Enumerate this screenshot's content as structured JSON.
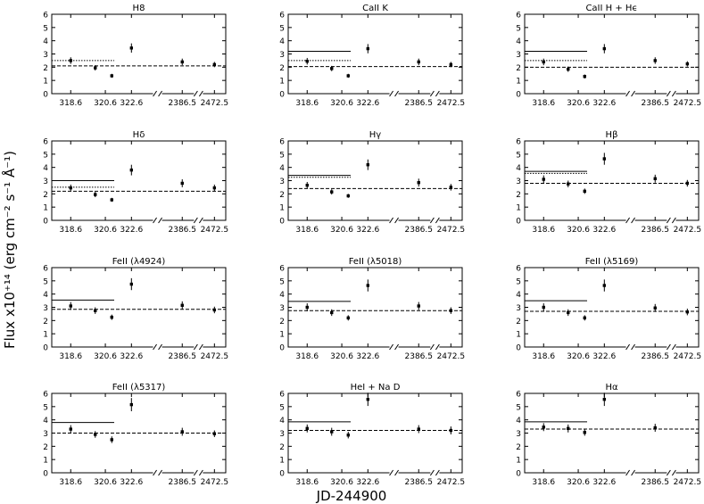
{
  "figure": {
    "xlabel": "JD-244900",
    "ylabel": "Flux x10⁺¹⁴ (erg cm⁻² s⁻¹ Å⁻¹)"
  },
  "chart_data": [
    {
      "type": "scatter",
      "title": "H8",
      "categories": [
        "318.6",
        "320.6",
        "322.6",
        "2386.5",
        "2472.5"
      ],
      "x": [
        318.6,
        319.9,
        320.6,
        322.6,
        2386.5,
        2472.5
      ],
      "y": [
        2.5,
        1.95,
        1.35,
        3.45,
        2.4,
        2.2
      ],
      "err": [
        0.25,
        0.2,
        0.15,
        0.35,
        0.25,
        0.2
      ],
      "mean": 2.1,
      "solid": null,
      "dotted": 2.5,
      "ylim": [
        0,
        6
      ],
      "yticks": [
        0,
        1,
        2,
        3,
        4,
        5,
        6
      ]
    },
    {
      "type": "scatter",
      "title": "CaII K",
      "categories": [
        "318.6",
        "320.6",
        "322.6",
        "2386.5",
        "2472.5"
      ],
      "x": [
        318.6,
        319.9,
        320.6,
        322.6,
        2386.5,
        2472.5
      ],
      "y": [
        2.45,
        1.9,
        1.35,
        3.4,
        2.4,
        2.2
      ],
      "err": [
        0.25,
        0.2,
        0.15,
        0.35,
        0.25,
        0.2
      ],
      "mean": 2.05,
      "solid": 3.2,
      "dotted": 2.5,
      "ylim": [
        0,
        6
      ],
      "yticks": [
        0,
        1,
        2,
        3,
        4,
        5,
        6
      ]
    },
    {
      "type": "scatter",
      "title": "CaII H + Hϵ",
      "categories": [
        "318.6",
        "320.6",
        "322.6",
        "2386.5",
        "2472.5"
      ],
      "x": [
        318.6,
        319.9,
        320.6,
        322.6,
        2386.5,
        2472.5
      ],
      "y": [
        2.4,
        1.85,
        1.3,
        3.4,
        2.5,
        2.25
      ],
      "err": [
        0.25,
        0.2,
        0.15,
        0.35,
        0.25,
        0.2
      ],
      "mean": 2.0,
      "solid": 3.2,
      "dotted": 2.5,
      "ylim": [
        0,
        6
      ],
      "yticks": [
        0,
        1,
        2,
        3,
        4,
        5,
        6
      ]
    },
    {
      "type": "scatter",
      "title": "Hδ",
      "categories": [
        "318.6",
        "320.6",
        "322.6",
        "2386.5",
        "2472.5"
      ],
      "x": [
        318.6,
        319.9,
        320.6,
        322.6,
        2386.5,
        2472.5
      ],
      "y": [
        2.45,
        1.95,
        1.55,
        3.8,
        2.8,
        2.45
      ],
      "err": [
        0.25,
        0.2,
        0.15,
        0.4,
        0.3,
        0.25
      ],
      "mean": 2.2,
      "solid": 3.0,
      "dotted": 2.5,
      "ylim": [
        0,
        6
      ],
      "yticks": [
        0,
        1,
        2,
        3,
        4,
        5,
        6
      ]
    },
    {
      "type": "scatter",
      "title": "Hγ",
      "categories": [
        "318.6",
        "320.6",
        "322.6",
        "2386.5",
        "2472.5"
      ],
      "x": [
        318.6,
        319.9,
        320.6,
        322.6,
        2386.5,
        2472.5
      ],
      "y": [
        2.65,
        2.15,
        1.85,
        4.2,
        2.85,
        2.5
      ],
      "err": [
        0.25,
        0.2,
        0.15,
        0.4,
        0.3,
        0.25
      ],
      "mean": 2.4,
      "solid": 3.4,
      "dotted": 3.25,
      "ylim": [
        0,
        6
      ],
      "yticks": [
        0,
        1,
        2,
        3,
        4,
        5,
        6
      ]
    },
    {
      "type": "scatter",
      "title": "Hβ",
      "categories": [
        "318.6",
        "320.6",
        "322.6",
        "2386.5",
        "2472.5"
      ],
      "x": [
        318.6,
        319.9,
        320.6,
        322.6,
        2386.5,
        2472.5
      ],
      "y": [
        3.1,
        2.75,
        2.2,
        4.65,
        3.15,
        2.8
      ],
      "err": [
        0.3,
        0.25,
        0.2,
        0.45,
        0.3,
        0.25
      ],
      "mean": 2.8,
      "solid": 3.7,
      "dotted": 3.55,
      "ylim": [
        0,
        6
      ],
      "yticks": [
        0,
        1,
        2,
        3,
        4,
        5,
        6
      ]
    },
    {
      "type": "scatter",
      "title": "FeII (λ4924)",
      "categories": [
        "318.6",
        "320.6",
        "322.6",
        "2386.5",
        "2472.5"
      ],
      "x": [
        318.6,
        319.9,
        320.6,
        322.6,
        2386.5,
        2472.5
      ],
      "y": [
        3.1,
        2.75,
        2.25,
        4.75,
        3.15,
        2.8
      ],
      "err": [
        0.3,
        0.25,
        0.2,
        0.45,
        0.3,
        0.25
      ],
      "mean": 2.85,
      "solid": 3.55,
      "dotted": null,
      "ylim": [
        0,
        6
      ],
      "yticks": [
        0,
        1,
        2,
        3,
        4,
        5,
        6
      ]
    },
    {
      "type": "scatter",
      "title": "FeII (λ5018)",
      "categories": [
        "318.6",
        "320.6",
        "322.6",
        "2386.5",
        "2472.5"
      ],
      "x": [
        318.6,
        319.9,
        320.6,
        322.6,
        2386.5,
        2472.5
      ],
      "y": [
        3.0,
        2.6,
        2.2,
        4.65,
        3.1,
        2.75
      ],
      "err": [
        0.3,
        0.25,
        0.2,
        0.45,
        0.3,
        0.25
      ],
      "mean": 2.75,
      "solid": 3.45,
      "dotted": null,
      "ylim": [
        0,
        6
      ],
      "yticks": [
        0,
        1,
        2,
        3,
        4,
        5,
        6
      ]
    },
    {
      "type": "scatter",
      "title": "FeII (λ5169)",
      "categories": [
        "318.6",
        "320.6",
        "322.6",
        "2386.5",
        "2472.5"
      ],
      "x": [
        318.6,
        319.9,
        320.6,
        322.6,
        2386.5,
        2472.5
      ],
      "y": [
        3.0,
        2.6,
        2.2,
        4.65,
        2.95,
        2.65
      ],
      "err": [
        0.3,
        0.25,
        0.2,
        0.45,
        0.3,
        0.25
      ],
      "mean": 2.7,
      "solid": 3.5,
      "dotted": null,
      "ylim": [
        0,
        6
      ],
      "yticks": [
        0,
        1,
        2,
        3,
        4,
        5,
        6
      ]
    },
    {
      "type": "scatter",
      "title": "FeII (λ5317)",
      "categories": [
        "318.6",
        "320.6",
        "322.6",
        "2386.5",
        "2472.5"
      ],
      "x": [
        318.6,
        319.9,
        320.6,
        322.6,
        2386.5,
        2472.5
      ],
      "y": [
        3.3,
        2.9,
        2.5,
        5.15,
        3.1,
        2.95
      ],
      "err": [
        0.3,
        0.25,
        0.25,
        0.5,
        0.3,
        0.25
      ],
      "mean": 3.0,
      "solid": 3.8,
      "dotted": null,
      "ylim": [
        0,
        6
      ],
      "yticks": [
        0,
        1,
        2,
        3,
        4,
        5,
        6
      ]
    },
    {
      "type": "scatter",
      "title": "HeI + Na D",
      "categories": [
        "318.6",
        "320.6",
        "322.6",
        "2386.5",
        "2472.5"
      ],
      "x": [
        318.6,
        319.9,
        320.6,
        322.6,
        2386.5,
        2472.5
      ],
      "y": [
        3.35,
        3.1,
        2.85,
        5.55,
        3.3,
        3.2
      ],
      "err": [
        0.3,
        0.3,
        0.25,
        0.5,
        0.3,
        0.3
      ],
      "mean": 3.2,
      "solid": 3.85,
      "dotted": null,
      "ylim": [
        0,
        6
      ],
      "yticks": [
        0,
        1,
        2,
        3,
        4,
        5,
        6
      ]
    },
    {
      "type": "scatter",
      "title": "Hα",
      "categories": [
        "318.6",
        "320.6",
        "322.6",
        "2386.5",
        "2472.5"
      ],
      "x": [
        318.6,
        319.9,
        320.6,
        322.6,
        2386.5,
        2472.5
      ],
      "y": [
        3.45,
        3.35,
        3.05,
        5.55,
        3.4,
        null
      ],
      "err": [
        0.3,
        0.3,
        0.25,
        0.5,
        0.3,
        null
      ],
      "mean": 3.3,
      "solid": 3.85,
      "dotted": null,
      "ylim": [
        0,
        6
      ],
      "yticks": [
        0,
        1,
        2,
        3,
        4,
        5,
        6
      ]
    }
  ]
}
